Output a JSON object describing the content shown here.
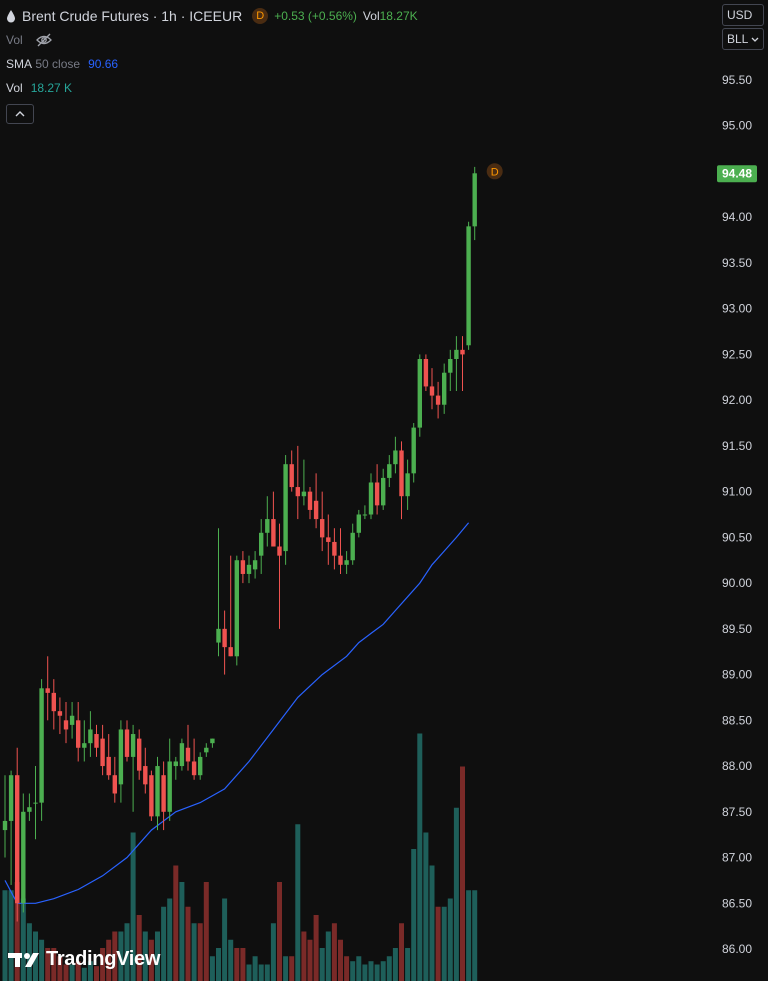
{
  "header": {
    "title": "Brent Crude Futures · 1h · ICEEUR",
    "badge": "D",
    "change": "+0.53 (+0.56%)",
    "vol_label": "Vol",
    "vol_value": "18.27K"
  },
  "indicators": {
    "vol_hidden_label": "Vol",
    "sma_label": "SMA",
    "sma_params": "50 close",
    "sma_value": "90.66",
    "vol_label": "Vol",
    "vol_value": "18.27 K"
  },
  "controls": {
    "currency": "USD",
    "unit": "BLL"
  },
  "price_axis": {
    "last_price": "94.48",
    "dividend_marker": "D"
  },
  "branding": {
    "logo_text": "TradingView"
  },
  "colors": {
    "background": "#0f0f0f",
    "up": "#4caf50",
    "down": "#ef5350",
    "vol_up": "#1e5f5a",
    "vol_down": "#7a2a28",
    "sma": "#2962ff",
    "last_price_bg": "#4caf50"
  },
  "chart_data": {
    "type": "candlestick",
    "y_range": [
      85.8,
      95.85
    ],
    "y_ticks": [
      "95.50",
      "95.00",
      "94.50",
      "94.00",
      "93.50",
      "93.00",
      "92.50",
      "92.00",
      "91.50",
      "91.00",
      "90.50",
      "90.00",
      "89.50",
      "89.00",
      "88.50",
      "88.00",
      "87.50",
      "87.00",
      "86.50",
      "86.00"
    ],
    "candles": [
      [
        87.3,
        87.9,
        87.0,
        87.4
      ],
      [
        87.4,
        87.95,
        86.7,
        87.9
      ],
      [
        87.9,
        88.2,
        86.3,
        86.5
      ],
      [
        86.5,
        87.7,
        86.4,
        87.5
      ],
      [
        87.5,
        87.7,
        87.4,
        87.55
      ],
      [
        87.6,
        88.0,
        87.2,
        87.6
      ],
      [
        87.6,
        88.95,
        87.4,
        88.85
      ],
      [
        88.85,
        89.2,
        88.5,
        88.8
      ],
      [
        88.8,
        88.95,
        88.4,
        88.6
      ],
      [
        88.6,
        88.75,
        88.35,
        88.55
      ],
      [
        88.5,
        88.7,
        88.25,
        88.4
      ],
      [
        88.45,
        88.7,
        88.3,
        88.55
      ],
      [
        88.5,
        88.7,
        88.05,
        88.2
      ],
      [
        88.2,
        88.5,
        88.05,
        88.25
      ],
      [
        88.25,
        88.6,
        88.1,
        88.4
      ],
      [
        88.35,
        88.45,
        88.1,
        88.2
      ],
      [
        88.3,
        88.45,
        87.9,
        88.0
      ],
      [
        88.1,
        88.35,
        87.85,
        87.9
      ],
      [
        87.9,
        88.1,
        87.6,
        87.7
      ],
      [
        87.8,
        88.5,
        87.6,
        88.4
      ],
      [
        88.4,
        88.5,
        88.05,
        88.1
      ],
      [
        88.1,
        88.45,
        87.5,
        88.35
      ],
      [
        88.3,
        88.4,
        87.85,
        87.95
      ],
      [
        88.0,
        88.2,
        87.7,
        87.8
      ],
      [
        87.9,
        87.95,
        87.4,
        87.45
      ],
      [
        87.45,
        88.1,
        87.3,
        88.0
      ],
      [
        87.9,
        88.05,
        87.3,
        87.5
      ],
      [
        87.5,
        88.3,
        87.4,
        88.05
      ],
      [
        88.0,
        88.1,
        87.85,
        88.05
      ],
      [
        88.0,
        88.3,
        87.95,
        88.25
      ],
      [
        88.2,
        88.45,
        87.95,
        88.05
      ],
      [
        88.05,
        88.3,
        87.85,
        87.9
      ],
      [
        87.9,
        88.15,
        87.85,
        88.1
      ],
      [
        88.15,
        88.25,
        88.1,
        88.2
      ],
      [
        88.25,
        88.3,
        88.2,
        88.3
      ],
      [
        89.35,
        90.6,
        89.2,
        89.5
      ],
      [
        89.5,
        89.7,
        89.0,
        89.3
      ],
      [
        89.3,
        90.3,
        89.2,
        89.2
      ],
      [
        89.2,
        90.3,
        89.1,
        90.25
      ],
      [
        90.25,
        90.35,
        90.0,
        90.1
      ],
      [
        90.1,
        90.3,
        90.0,
        90.2
      ],
      [
        90.15,
        90.35,
        90.05,
        90.25
      ],
      [
        90.3,
        90.7,
        90.1,
        90.55
      ],
      [
        90.55,
        90.95,
        90.4,
        90.7
      ],
      [
        90.7,
        91.0,
        90.4,
        90.4
      ],
      [
        90.4,
        90.65,
        89.5,
        90.3
      ],
      [
        90.35,
        91.4,
        90.2,
        91.3
      ],
      [
        91.3,
        91.45,
        91.0,
        91.05
      ],
      [
        91.05,
        91.5,
        90.7,
        90.95
      ],
      [
        90.95,
        91.35,
        90.85,
        91.0
      ],
      [
        91.0,
        91.05,
        90.7,
        90.8
      ],
      [
        90.9,
        91.2,
        90.6,
        90.7
      ],
      [
        90.7,
        91.0,
        90.35,
        90.5
      ],
      [
        90.5,
        90.75,
        90.2,
        90.45
      ],
      [
        90.45,
        90.6,
        90.15,
        90.3
      ],
      [
        90.3,
        90.6,
        90.1,
        90.2
      ],
      [
        90.2,
        90.35,
        90.1,
        90.25
      ],
      [
        90.25,
        90.65,
        90.2,
        90.55
      ],
      [
        90.55,
        90.8,
        90.5,
        90.75
      ],
      [
        90.75,
        90.85,
        90.7,
        90.75
      ],
      [
        90.75,
        91.2,
        90.7,
        91.1
      ],
      [
        91.1,
        91.3,
        90.75,
        90.85
      ],
      [
        90.85,
        91.25,
        90.8,
        91.15
      ],
      [
        91.15,
        91.4,
        91.05,
        91.3
      ],
      [
        91.3,
        91.6,
        91.2,
        91.45
      ],
      [
        91.45,
        91.55,
        90.7,
        90.95
      ],
      [
        90.95,
        91.35,
        90.8,
        91.2
      ],
      [
        91.2,
        91.75,
        91.1,
        91.7
      ],
      [
        91.7,
        92.5,
        91.6,
        92.45
      ],
      [
        92.45,
        92.5,
        92.1,
        92.15
      ],
      [
        92.15,
        92.35,
        91.9,
        92.05
      ],
      [
        92.05,
        92.2,
        91.8,
        91.95
      ],
      [
        91.95,
        92.4,
        91.85,
        92.3
      ],
      [
        92.3,
        92.55,
        92.1,
        92.45
      ],
      [
        92.45,
        92.7,
        92.1,
        92.55
      ],
      [
        92.55,
        92.7,
        92.1,
        92.5
      ],
      [
        92.6,
        93.95,
        92.55,
        93.9
      ],
      [
        93.9,
        94.55,
        93.75,
        94.48
      ]
    ],
    "volumes": [
      [
        0.55,
        1
      ],
      [
        0.55,
        1
      ],
      [
        0.6,
        0
      ],
      [
        0.5,
        1
      ],
      [
        0.35,
        1
      ],
      [
        0.3,
        1
      ],
      [
        0.25,
        1
      ],
      [
        0.2,
        0
      ],
      [
        0.2,
        0
      ],
      [
        0.15,
        0
      ],
      [
        0.1,
        0
      ],
      [
        0.1,
        1
      ],
      [
        0.12,
        0
      ],
      [
        0.08,
        1
      ],
      [
        0.12,
        1
      ],
      [
        0.09,
        0
      ],
      [
        0.2,
        0
      ],
      [
        0.25,
        0
      ],
      [
        0.3,
        0
      ],
      [
        0.3,
        1
      ],
      [
        0.35,
        1
      ],
      [
        0.9,
        1
      ],
      [
        0.4,
        0
      ],
      [
        0.3,
        1
      ],
      [
        0.25,
        0
      ],
      [
        0.3,
        1
      ],
      [
        0.45,
        1
      ],
      [
        0.5,
        1
      ],
      [
        0.7,
        0
      ],
      [
        0.6,
        1
      ],
      [
        0.45,
        0
      ],
      [
        0.35,
        1
      ],
      [
        0.35,
        0
      ],
      [
        0.6,
        0
      ],
      [
        0.15,
        1
      ],
      [
        0.2,
        1
      ],
      [
        0.5,
        1
      ],
      [
        0.25,
        1
      ],
      [
        0.2,
        0
      ],
      [
        0.2,
        0
      ],
      [
        0.1,
        1
      ],
      [
        0.15,
        1
      ],
      [
        0.1,
        1
      ],
      [
        0.1,
        1
      ],
      [
        0.35,
        1
      ],
      [
        0.6,
        0
      ],
      [
        0.15,
        1
      ],
      [
        0.15,
        0
      ],
      [
        0.95,
        1
      ],
      [
        0.3,
        0
      ],
      [
        0.25,
        0
      ],
      [
        0.4,
        0
      ],
      [
        0.2,
        1
      ],
      [
        0.3,
        1
      ],
      [
        0.35,
        0
      ],
      [
        0.25,
        0
      ],
      [
        0.15,
        0
      ],
      [
        0.12,
        1
      ],
      [
        0.15,
        1
      ],
      [
        0.1,
        1
      ],
      [
        0.12,
        1
      ],
      [
        0.1,
        1
      ],
      [
        0.12,
        1
      ],
      [
        0.15,
        1
      ],
      [
        0.2,
        1
      ],
      [
        0.35,
        0
      ],
      [
        0.2,
        1
      ],
      [
        0.8,
        1
      ],
      [
        1.5,
        1
      ],
      [
        0.9,
        1
      ],
      [
        0.7,
        1
      ],
      [
        0.45,
        0
      ],
      [
        0.45,
        1
      ],
      [
        0.5,
        1
      ],
      [
        1.05,
        1
      ],
      [
        1.3,
        0
      ],
      [
        0.55,
        1
      ],
      [
        0.55,
        1
      ]
    ],
    "sma_points": [
      [
        0,
        86.75
      ],
      [
        2,
        86.5
      ],
      [
        5,
        86.5
      ],
      [
        8,
        86.55
      ],
      [
        12,
        86.65
      ],
      [
        16,
        86.8
      ],
      [
        20,
        87.0
      ],
      [
        24,
        87.3
      ],
      [
        28,
        87.5
      ],
      [
        32,
        87.6
      ],
      [
        36,
        87.75
      ],
      [
        40,
        88.05
      ],
      [
        44,
        88.4
      ],
      [
        48,
        88.75
      ],
      [
        52,
        89.0
      ],
      [
        56,
        89.2
      ],
      [
        58,
        89.35
      ],
      [
        60,
        89.45
      ],
      [
        62,
        89.55
      ],
      [
        64,
        89.7
      ],
      [
        66,
        89.85
      ],
      [
        68,
        90.0
      ],
      [
        70,
        90.2
      ],
      [
        72,
        90.35
      ],
      [
        74,
        90.5
      ],
      [
        76,
        90.66
      ]
    ]
  }
}
